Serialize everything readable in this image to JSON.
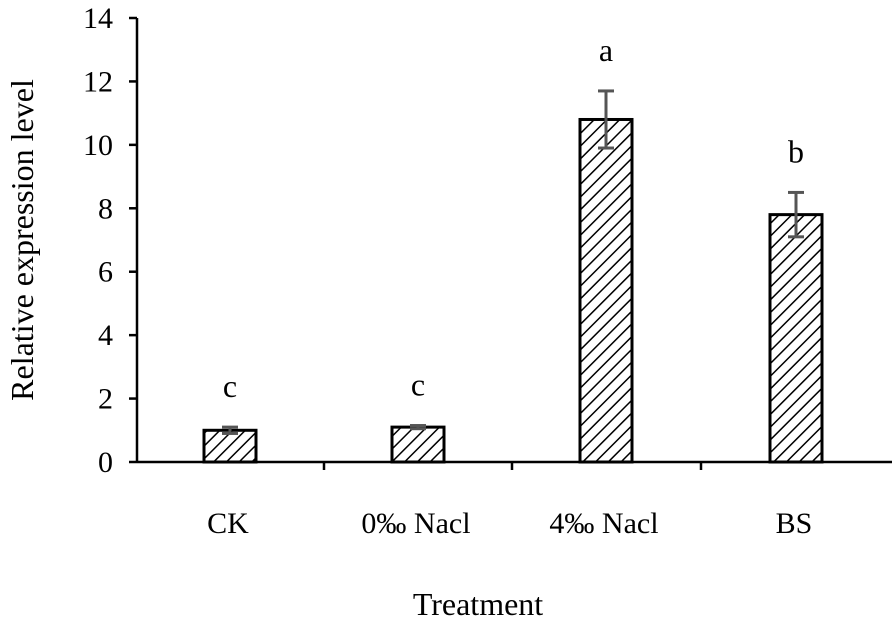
{
  "chart_data": {
    "type": "bar",
    "categories": [
      "CK",
      "0‰ Nacl",
      "4‰ Nacl",
      "BS"
    ],
    "values": [
      1.0,
      1.1,
      10.8,
      7.8
    ],
    "errors": [
      0.1,
      0.05,
      0.9,
      0.7
    ],
    "significance": [
      "c",
      "c",
      "a",
      "b"
    ],
    "xlabel": "Treatment",
    "ylabel": "Relative expression level",
    "ylim": [
      0,
      14
    ],
    "yticks": [
      0,
      2,
      4,
      6,
      8,
      10,
      12,
      14
    ],
    "grid": false,
    "bar_fill": "diagonal-hatch",
    "colors": {
      "bar_stroke": "#000000",
      "error_bar": "#555555"
    }
  }
}
